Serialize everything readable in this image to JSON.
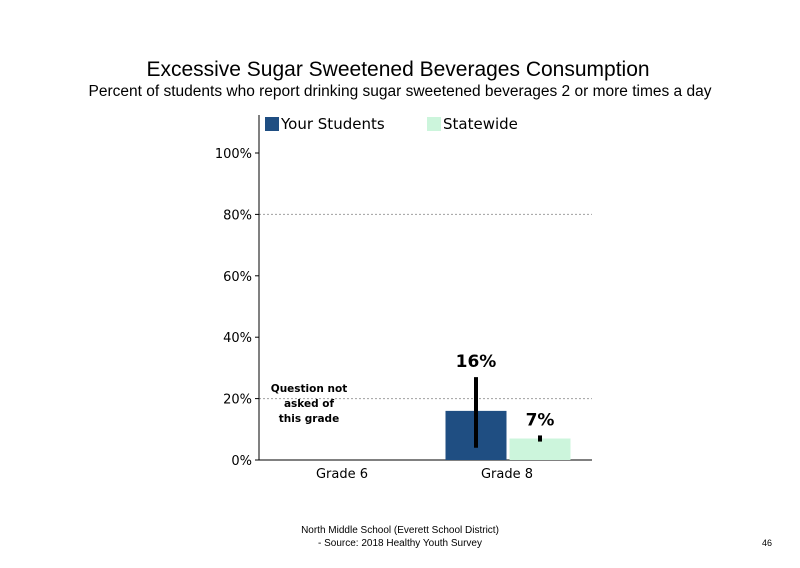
{
  "header": {
    "title": "Excessive Sugar Sweetened Beverages Consumption",
    "subtitle": "Percent of students who report drinking sugar sweetened beverages 2 or more times a day"
  },
  "footer": {
    "line1": "North Middle School (Everett School District)",
    "line2": "- Source: 2018 Healthy Youth Survey",
    "page_number": "46"
  },
  "colors": {
    "your_students": "#1f4e82",
    "statewide": "#ccf5dc",
    "error_bar": "#000000",
    "grid": "#a0a0a0"
  },
  "chart_data": {
    "type": "bar",
    "title": "Excessive Sugar Sweetened Beverages Consumption",
    "subtitle": "Percent of students who report drinking sugar sweetened beverages 2 or more times a day",
    "categories": [
      "Grade 6",
      "Grade 8"
    ],
    "series": [
      {
        "name": "Your Students",
        "values": [
          null,
          16
        ],
        "labels": [
          "",
          "16%"
        ],
        "error_low": [
          null,
          4
        ],
        "error_high": [
          null,
          27
        ]
      },
      {
        "name": "Statewide",
        "values": [
          null,
          7
        ],
        "labels": [
          "",
          "7%"
        ],
        "error_low": [
          null,
          6
        ],
        "error_high": [
          null,
          8
        ]
      }
    ],
    "yticks": [
      "0%",
      "20%",
      "40%",
      "60%",
      "80%",
      "100%"
    ],
    "ytick_values": [
      0,
      20,
      40,
      60,
      80,
      100
    ],
    "ylim": [
      0,
      100
    ],
    "xlabel": "",
    "ylabel": "",
    "gridlines": [
      20,
      80
    ],
    "legend_position": "top",
    "annotations": [
      {
        "category": "Grade 6",
        "text_lines": [
          "Question not",
          "asked of",
          "this grade"
        ]
      }
    ]
  }
}
